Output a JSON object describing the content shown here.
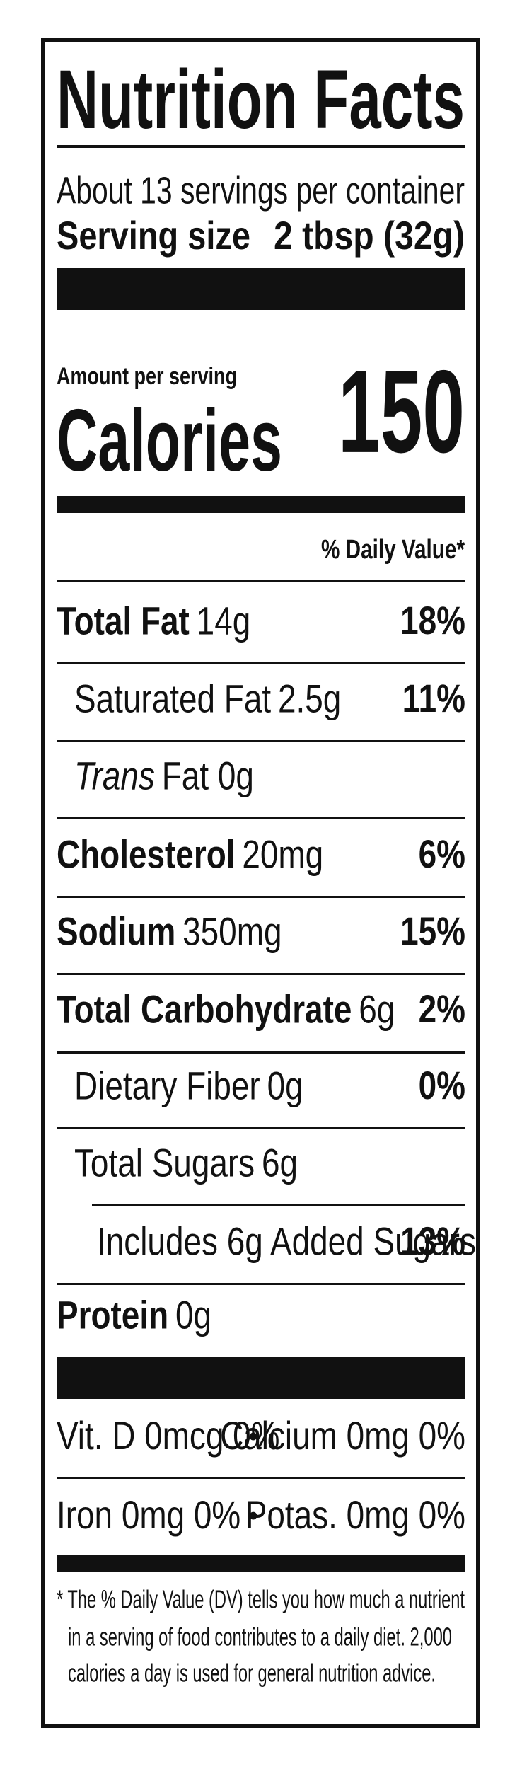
{
  "header": {
    "title": "Nutrition Facts",
    "servings": "About 13 servings per container",
    "serving_size_label": "Serving size",
    "serving_size_value": "2 tbsp (32g)"
  },
  "calories": {
    "amount_label": "Amount per serving",
    "label": "Calories",
    "value": "150"
  },
  "daily_value_header": "% Daily Value*",
  "nutrients": [
    {
      "name": "Total Fat",
      "amount": "14g",
      "dv": "18%"
    },
    {
      "name": "Saturated Fat",
      "amount": "2.5g",
      "dv": "11%"
    },
    {
      "name": "Trans",
      "amount": "Fat 0g"
    },
    {
      "name": "Cholesterol",
      "amount": "20mg",
      "dv": "6%"
    },
    {
      "name": "Sodium",
      "amount": "350mg",
      "dv": "15%"
    },
    {
      "name": "Total Carbohydrate",
      "amount": "6g",
      "dv": "2%"
    },
    {
      "name": "Dietary Fiber",
      "amount": "0g",
      "dv": "0%"
    },
    {
      "name": "Total Sugars",
      "amount": "6g"
    },
    {
      "name": "Includes 6g Added Sugars",
      "dv": "13%"
    },
    {
      "name": "Protein",
      "amount": "0g"
    }
  ],
  "vitamins": [
    [
      "Vit. D 0mcg 0%",
      "Calcium 0mg 0%"
    ],
    [
      "Iron 0mg 0%",
      "Potas. 0mg 0%"
    ]
  ],
  "separator": "•",
  "footnote": [
    "* The % Daily Value (DV) tells you how much a nutrient",
    "in a serving of food contributes to a daily diet. 2,000",
    "calories a day is used for general nutrition advice."
  ]
}
